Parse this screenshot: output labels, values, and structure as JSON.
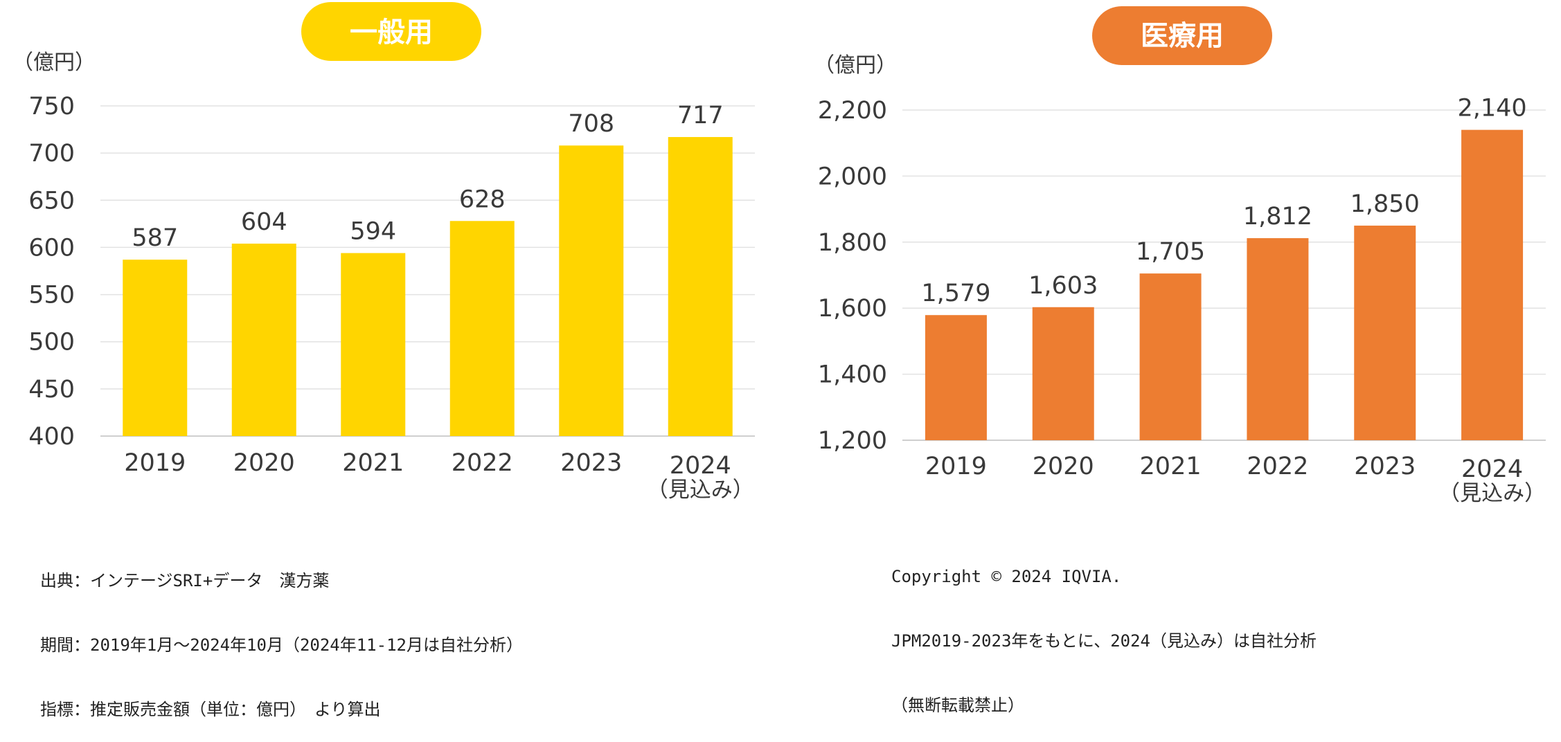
{
  "chart_data": [
    {
      "type": "bar",
      "title": "一般用",
      "unit_label": "（億円）",
      "categories": [
        "2019",
        "2020",
        "2021",
        "2022",
        "2023",
        "2024"
      ],
      "category_sublabels": [
        "",
        "",
        "",
        "",
        "",
        "（見込み）"
      ],
      "values": [
        587,
        604,
        594,
        628,
        708,
        717
      ],
      "data_labels": [
        "587",
        "604",
        "594",
        "628",
        "708",
        "717"
      ],
      "ylim": [
        400,
        750
      ],
      "y_ticks": [
        400,
        450,
        500,
        550,
        600,
        650,
        700,
        750
      ],
      "y_tick_labels": [
        "400",
        "450",
        "500",
        "550",
        "600",
        "650",
        "700",
        "750"
      ],
      "grid": true,
      "bar_color": "#FFD500",
      "title_color": "#FFD500"
    },
    {
      "type": "bar",
      "title": "医療用",
      "unit_label": "（億円）",
      "categories": [
        "2019",
        "2020",
        "2021",
        "2022",
        "2023",
        "2024"
      ],
      "category_sublabels": [
        "",
        "",
        "",
        "",
        "",
        "（見込み）"
      ],
      "values": [
        1579,
        1603,
        1705,
        1812,
        1850,
        2140
      ],
      "data_labels": [
        "1,579",
        "1,603",
        "1,705",
        "1,812",
        "1,850",
        "2,140"
      ],
      "ylim": [
        1200,
        2200
      ],
      "y_ticks": [
        1200,
        1400,
        1600,
        1800,
        2000,
        2200
      ],
      "y_tick_labels": [
        "1,200",
        "1,400",
        "1,600",
        "1,800",
        "2,000",
        "2,200"
      ],
      "grid": true,
      "bar_color": "#ED7D31",
      "title_color": "#ED7D31"
    }
  ],
  "notes_left": [
    "出典：インテージSRI+データ　漢方薬",
    "期間：2019年1月～2024年10月（2024年11-12月は自社分析）",
    "指標：推定販売金額（単位：億円）　より算出"
  ],
  "notes_right": [
    "Copyright © 2024 IQVIA.",
    "JPM2019-2023年をもとに、2024（見込み）は自社分析",
    "（無断転載禁止）"
  ]
}
